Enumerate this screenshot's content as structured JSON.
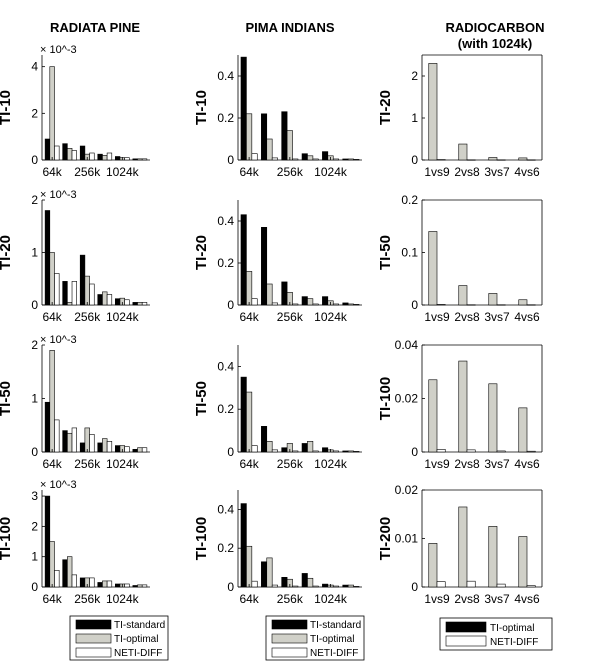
{
  "column_titles": [
    "RADIATA PINE",
    "PIMA INDIANS",
    "RADIOCARBON"
  ],
  "column_subtitle_3": "(with 1024k)",
  "legend_left": [
    "TI-standard",
    "TI-optimal",
    "NETI-DIFF"
  ],
  "legend_right": [
    "TI-optimal",
    "NETI-DIFF"
  ],
  "colors": {
    "TI-standard": "#000000",
    "TI-optimal": "#d0d0c8",
    "NETI-DIFF": "#ffffff"
  },
  "chart_data": [
    {
      "type": "bar",
      "panel": "radiata-ti10",
      "ylabel": "TI-10",
      "exponent": "× 10^-3",
      "ylim": [
        0,
        0.0045
      ],
      "yticks": [
        0,
        0.002,
        0.004
      ],
      "yticklabels": [
        "0",
        "2",
        "4"
      ],
      "x": [
        64,
        128,
        256,
        512,
        1024,
        2048
      ],
      "xticklabels": [
        "64k",
        "256k",
        "1024k"
      ],
      "xtickat": [
        64,
        256,
        1024
      ],
      "series": [
        {
          "name": "TI-standard",
          "values": [
            0.0009,
            0.0007,
            0.0006,
            0.00025,
            0.00015,
            5e-05
          ]
        },
        {
          "name": "TI-optimal",
          "values": [
            0.004,
            0.0005,
            0.00025,
            0.0002,
            0.0001,
            5e-05
          ]
        },
        {
          "name": "NETI-DIFF",
          "values": [
            0.0006,
            0.0004,
            0.0003,
            0.0003,
            0.0001,
            5e-05
          ]
        }
      ]
    },
    {
      "type": "bar",
      "panel": "pima-ti10",
      "ylabel": "TI-10",
      "ylim": [
        0,
        0.5
      ],
      "yticks": [
        0,
        0.2,
        0.4
      ],
      "yticklabels": [
        "0",
        "0.2",
        "0.4"
      ],
      "x": [
        64,
        128,
        256,
        512,
        1024,
        2048
      ],
      "xticklabels": [
        "64k",
        "256k",
        "1024k"
      ],
      "xtickat": [
        64,
        256,
        1024
      ],
      "series": [
        {
          "name": "TI-standard",
          "values": [
            0.49,
            0.22,
            0.23,
            0.03,
            0.04,
            0.005
          ]
        },
        {
          "name": "TI-optimal",
          "values": [
            0.22,
            0.1,
            0.14,
            0.02,
            0.02,
            0.005
          ]
        },
        {
          "name": "NETI-DIFF",
          "values": [
            0.03,
            0.01,
            0.005,
            0.005,
            0.005,
            0.003
          ]
        }
      ]
    },
    {
      "type": "bar",
      "panel": "radiocarbon-ti20",
      "ylabel": "TI-20",
      "ylim": [
        0,
        2.5
      ],
      "yticks": [
        0,
        1,
        2
      ],
      "yticklabels": [
        "0",
        "1",
        "2"
      ],
      "categories": [
        "1vs9",
        "2vs8",
        "3vs7",
        "4vs6"
      ],
      "series": [
        {
          "name": "TI-optimal",
          "values": [
            2.3,
            0.38,
            0.06,
            0.05
          ]
        },
        {
          "name": "NETI-DIFF",
          "values": [
            0.01,
            0.005,
            0.005,
            0.005
          ]
        }
      ]
    },
    {
      "type": "bar",
      "panel": "radiata-ti20",
      "ylabel": "TI-20",
      "exponent": "× 10^-3",
      "ylim": [
        0,
        0.002
      ],
      "yticks": [
        0,
        0.001,
        0.002
      ],
      "yticklabels": [
        "0",
        "1",
        "2"
      ],
      "x": [
        64,
        128,
        256,
        512,
        1024,
        2048
      ],
      "xticklabels": [
        "64k",
        "256k",
        "1024k"
      ],
      "xtickat": [
        64,
        256,
        1024
      ],
      "series": [
        {
          "name": "TI-standard",
          "values": [
            0.0018,
            0.00045,
            0.00095,
            0.0002,
            0.00012,
            5e-05
          ]
        },
        {
          "name": "TI-optimal",
          "values": [
            0.001,
            5e-05,
            0.00055,
            0.00025,
            0.00013,
            5e-05
          ]
        },
        {
          "name": "NETI-DIFF",
          "values": [
            0.0006,
            0.00045,
            0.0004,
            0.0002,
            0.0001,
            5e-05
          ]
        }
      ]
    },
    {
      "type": "bar",
      "panel": "pima-ti20",
      "ylabel": "TI-20",
      "ylim": [
        0,
        0.5
      ],
      "yticks": [
        0,
        0.2,
        0.4
      ],
      "yticklabels": [
        "0",
        "0.2",
        "0.4"
      ],
      "x": [
        64,
        128,
        256,
        512,
        1024,
        2048
      ],
      "xticklabels": [
        "64k",
        "256k",
        "1024k"
      ],
      "xtickat": [
        64,
        256,
        1024
      ],
      "series": [
        {
          "name": "TI-standard",
          "values": [
            0.43,
            0.37,
            0.11,
            0.04,
            0.04,
            0.01
          ]
        },
        {
          "name": "TI-optimal",
          "values": [
            0.16,
            0.1,
            0.06,
            0.03,
            0.02,
            0.005
          ]
        },
        {
          "name": "NETI-DIFF",
          "values": [
            0.03,
            0.01,
            0.005,
            0.005,
            0.005,
            0.003
          ]
        }
      ]
    },
    {
      "type": "bar",
      "panel": "radiocarbon-ti50",
      "ylabel": "TI-50",
      "ylim": [
        0,
        0.2
      ],
      "yticks": [
        0,
        0.1,
        0.2
      ],
      "yticklabels": [
        "0",
        "0.1",
        "0.2"
      ],
      "categories": [
        "1vs9",
        "2vs8",
        "3vs7",
        "4vs6"
      ],
      "series": [
        {
          "name": "TI-optimal",
          "values": [
            0.14,
            0.037,
            0.022,
            0.01
          ]
        },
        {
          "name": "NETI-DIFF",
          "values": [
            0.001,
            0.0005,
            0.0005,
            0.0005
          ]
        }
      ]
    },
    {
      "type": "bar",
      "panel": "radiata-ti50",
      "ylabel": "TI-50",
      "exponent": "× 10^-3",
      "ylim": [
        0,
        0.002
      ],
      "yticks": [
        0,
        0.001,
        0.002
      ],
      "yticklabels": [
        "0",
        "1",
        "2"
      ],
      "x": [
        64,
        128,
        256,
        512,
        1024,
        2048
      ],
      "xticklabels": [
        "64k",
        "256k",
        "1024k"
      ],
      "xtickat": [
        64,
        256,
        1024
      ],
      "series": [
        {
          "name": "TI-standard",
          "values": [
            0.00093,
            0.0004,
            0.00017,
            0.00017,
            0.00012,
            5e-05
          ]
        },
        {
          "name": "TI-optimal",
          "values": [
            0.0019,
            0.00035,
            0.00045,
            0.00025,
            0.00012,
            8e-05
          ]
        },
        {
          "name": "NETI-DIFF",
          "values": [
            0.0006,
            0.00045,
            0.00033,
            0.0002,
            0.0001,
            8e-05
          ]
        }
      ]
    },
    {
      "type": "bar",
      "panel": "pima-ti50",
      "ylabel": "TI-50",
      "ylim": [
        0,
        0.5
      ],
      "yticks": [
        0,
        0.2,
        0.4
      ],
      "yticklabels": [
        "0",
        "0.2",
        "0.4"
      ],
      "x": [
        64,
        128,
        256,
        512,
        1024,
        2048
      ],
      "xticklabels": [
        "64k",
        "256k",
        "1024k"
      ],
      "xtickat": [
        64,
        256,
        1024
      ],
      "series": [
        {
          "name": "TI-standard",
          "values": [
            0.35,
            0.12,
            0.02,
            0.04,
            0.02,
            0.005
          ]
        },
        {
          "name": "TI-optimal",
          "values": [
            0.28,
            0.05,
            0.04,
            0.05,
            0.01,
            0.005
          ]
        },
        {
          "name": "NETI-DIFF",
          "values": [
            0.03,
            0.01,
            0.005,
            0.005,
            0.005,
            0.003
          ]
        }
      ]
    },
    {
      "type": "bar",
      "panel": "radiocarbon-ti100",
      "ylabel": "TI-100",
      "ylim": [
        0,
        0.04
      ],
      "yticks": [
        0,
        0.02,
        0.04
      ],
      "yticklabels": [
        "0",
        "0.02",
        "0.04"
      ],
      "categories": [
        "1vs9",
        "2vs8",
        "3vs7",
        "4vs6"
      ],
      "series": [
        {
          "name": "TI-optimal",
          "values": [
            0.027,
            0.034,
            0.0255,
            0.0165
          ]
        },
        {
          "name": "NETI-DIFF",
          "values": [
            0.001,
            0.0008,
            0.0004,
            0.0003
          ]
        }
      ]
    },
    {
      "type": "bar",
      "panel": "radiata-ti100",
      "ylabel": "TI-100",
      "exponent": "× 10^-3",
      "ylim": [
        0,
        0.0032
      ],
      "yticks": [
        0,
        0.001,
        0.002,
        0.003
      ],
      "yticklabels": [
        "0",
        "1",
        "2",
        "3"
      ],
      "x": [
        64,
        128,
        256,
        512,
        1024,
        2048
      ],
      "xticklabels": [
        "64k",
        "256k",
        "1024k"
      ],
      "xtickat": [
        64,
        256,
        1024
      ],
      "series": [
        {
          "name": "TI-standard",
          "values": [
            0.003,
            0.0009,
            0.0003,
            0.00015,
            0.0001,
            5e-05
          ]
        },
        {
          "name": "TI-optimal",
          "values": [
            0.0015,
            0.001,
            0.0003,
            0.0002,
            0.0001,
            7e-05
          ]
        },
        {
          "name": "NETI-DIFF",
          "values": [
            0.00055,
            0.0004,
            0.0003,
            0.0002,
            0.0001,
            7e-05
          ]
        }
      ]
    },
    {
      "type": "bar",
      "panel": "pima-ti100",
      "ylabel": "TI-100",
      "ylim": [
        0,
        0.5
      ],
      "yticks": [
        0,
        0.2,
        0.4
      ],
      "yticklabels": [
        "0",
        "0.2",
        "0.4"
      ],
      "x": [
        64,
        128,
        256,
        512,
        1024,
        2048
      ],
      "xticklabels": [
        "64k",
        "256k",
        "1024k"
      ],
      "xtickat": [
        64,
        256,
        1024
      ],
      "series": [
        {
          "name": "TI-standard",
          "values": [
            0.43,
            0.13,
            0.05,
            0.07,
            0.015,
            0.01
          ]
        },
        {
          "name": "TI-optimal",
          "values": [
            0.21,
            0.15,
            0.04,
            0.045,
            0.01,
            0.01
          ]
        },
        {
          "name": "NETI-DIFF",
          "values": [
            0.03,
            0.01,
            0.005,
            0.005,
            0.005,
            0.003
          ]
        }
      ]
    },
    {
      "type": "bar",
      "panel": "radiocarbon-ti200",
      "ylabel": "TI-200",
      "ylim": [
        0,
        0.02
      ],
      "yticks": [
        0,
        0.01,
        0.02
      ],
      "yticklabels": [
        "0",
        "0.01",
        "0.02"
      ],
      "categories": [
        "1vs9",
        "2vs8",
        "3vs7",
        "4vs6"
      ],
      "series": [
        {
          "name": "TI-optimal",
          "values": [
            0.009,
            0.0165,
            0.0125,
            0.0104
          ]
        },
        {
          "name": "NETI-DIFF",
          "values": [
            0.0011,
            0.0012,
            0.0006,
            0.0003
          ]
        }
      ]
    }
  ]
}
